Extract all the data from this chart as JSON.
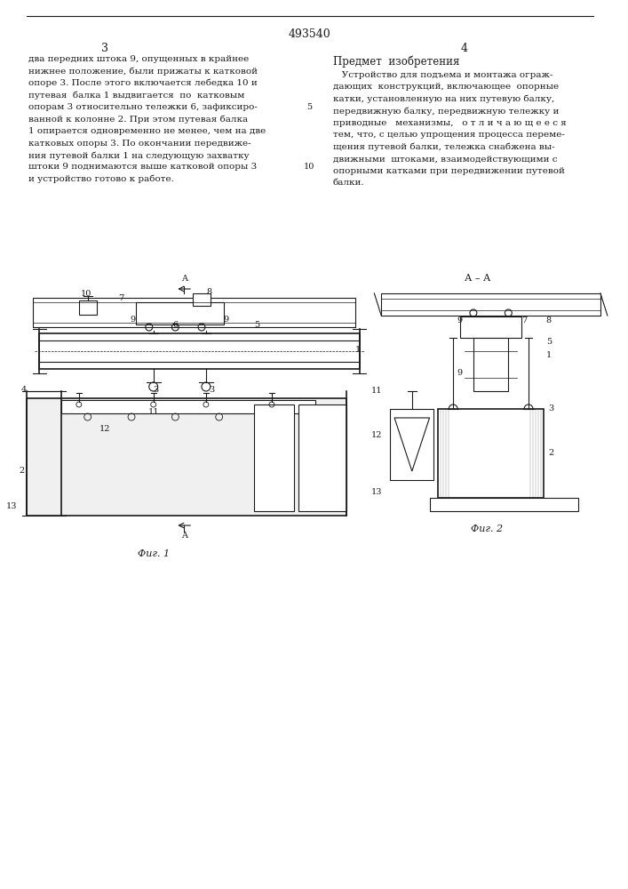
{
  "patent_number": "493540",
  "page_numbers": [
    "3",
    "4"
  ],
  "col1_text": "два передних штока 9, опущенных в крайнее\nнижнее положение, были прижаты к катковой\nопоре 3. После этого включается лебедка 10 и\nпутевая  балка 1 выдвигается  по  катковым\nопорам 3 относительно тележки 6, зафиксиро-\nванной к колонне 2. При этом путевая балка\n1 опирается одновременно не менее, чем на две\nкатковых опоры 3. По окончании передвиже-\nния путевой балки 1 на следующую захватку\nштоки 9 поднимаются выше катковой опоры 3\nи устройство готово к работе.",
  "col2_title": "Предмет  изобретения",
  "col2_text": "   Устройство для подъема и монтажа ограж-\nдающих  конструкций, включающее  опорные\nкатки, установленную на них путевую балку,\nпередвижную балку, передвижную тележку и\nприводные   механизмы,   о т л и ч а ю щ е е с я\nтем, что, с целью упрощения процесса переме-\nщения путевой балки, тележка снабжена вы-\nдвижными  штоками, взаимодействующими с\nопорными катками при передвижении путевой\nбалки.",
  "line_number_5": "5",
  "line_number_10": "10",
  "fig1_caption": "Фиг. 1",
  "fig2_caption": "Фиг. 2",
  "cut_label": "А",
  "cut_section": "А – А",
  "bg_color": "#ffffff",
  "text_color": "#1a1a1a",
  "line_color": "#1a1a1a"
}
